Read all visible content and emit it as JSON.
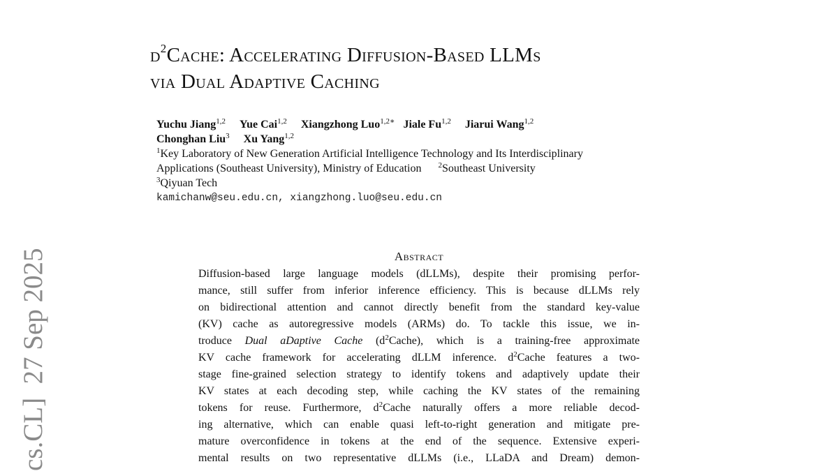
{
  "stamp": "cs.CL]  27 Sep 2025",
  "title": {
    "d": "d",
    "sup": "2",
    "line1_rest": "Cache: Accelerating Diffusion-Based LLMs",
    "line2": "via Dual Adaptive Caching"
  },
  "authors": [
    {
      "name": "Yuchu Jiang",
      "aff": "1,2"
    },
    {
      "name": "Yue Cai",
      "aff": "1,2"
    },
    {
      "name": "Xiangzhong Luo",
      "aff": "1,2∗"
    },
    {
      "name": "Jiale Fu",
      "aff": "1,2"
    },
    {
      "name": "Jiarui Wang",
      "aff": "1,2"
    },
    {
      "name": "Chonghan Liu",
      "aff": "3"
    },
    {
      "name": "Xu Yang",
      "aff": "1,2"
    }
  ],
  "affiliations": {
    "a1_num": "1",
    "a1_line1": "Key Laboratory of New Generation Artificial Intelligence Technology and Its Interdisciplinary",
    "a1_line2": "Applications (Southeast University), Ministry of Education",
    "a2_num": "2",
    "a2": "Southeast University",
    "a3_num": "3",
    "a3": "Qiyuan Tech"
  },
  "emails": "kamichanw@seu.edu.cn, xiangzhong.luo@seu.edu.cn",
  "abstract": {
    "heading": "Abstract",
    "l1": "Diffusion-based large language models (dLLMs), despite their promising perfor-",
    "l2": "mance, still suffer from inferior inference efficiency. This is because dLLMs rely",
    "l3": "on bidirectional attention and cannot directly benefit from the standard key-value",
    "l4": "(KV) cache as autoregressive models (ARMs) do.  To tackle this issue, we in-",
    "l5a": "troduce ",
    "l5em": "Dual aDaptive Cache",
    "l5b": " (d",
    "l5c": "Cache), which is a training-free approximate",
    "l6a": "KV cache framework for accelerating dLLM inference. d",
    "l6b": "Cache features a two-",
    "l7": "stage fine-grained selection strategy to identify tokens and adaptively update their",
    "l8": "KV states at each decoding step, while caching the KV states of the remaining",
    "l9a": "tokens for reuse.  Furthermore, d",
    "l9b": "Cache naturally offers a more reliable decod-",
    "l10": "ing alternative, which can enable quasi left-to-right generation and mitigate pre-",
    "l11": "mature overconfidence in tokens at the end of the sequence.  Extensive experi-",
    "l12": "mental results on two representative dLLMs (i.e., LLaDA and Dream) demon-",
    "sup2": "2"
  }
}
